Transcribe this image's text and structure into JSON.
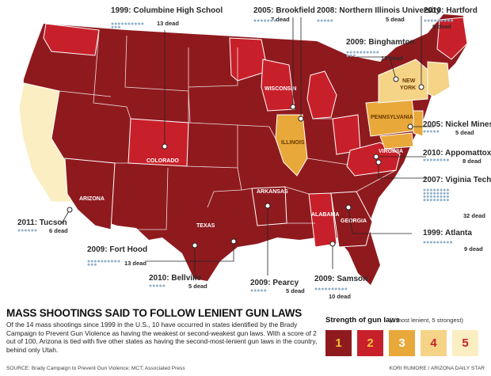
{
  "map": {
    "states": {
      "colorado": "COLORADO",
      "arizona": "ARIZONA",
      "texas": "TEXAS",
      "arkansas": "ARKANSAS",
      "wisconsin": "WISCONSIN",
      "illinois": "ILLINOIS",
      "alabama": "ALABAMA",
      "georgia": "GEORGIA",
      "virginia": "VIRGINIA",
      "pennsylvania": "PENNSYLVANIA",
      "newyork_1": "NEW",
      "newyork_2": "YORK"
    },
    "events": [
      {
        "id": "columbine",
        "title": "1999: Columbine High School",
        "deaths": "13 dead"
      },
      {
        "id": "brookfield",
        "title": "2005: Brookfield",
        "deaths": "7 dead"
      },
      {
        "id": "niu",
        "title": "2008: Northern Illinois University",
        "deaths": "5 dead"
      },
      {
        "id": "hartford",
        "title": "2010: Hartford",
        "deaths": "9 dead"
      },
      {
        "id": "binghamton",
        "title": "2009: Binghamton",
        "deaths": "13 dead"
      },
      {
        "id": "nickelmines",
        "title": "2005: Nickel Mines",
        "deaths": "5 dead"
      },
      {
        "id": "appomattox",
        "title": "2010: Appomattox",
        "deaths": "8 dead"
      },
      {
        "id": "vatech",
        "title": "2007: Viginia Tech",
        "deaths": "32 dead"
      },
      {
        "id": "atlanta",
        "title": "1999: Atlanta",
        "deaths": "9 dead"
      },
      {
        "id": "tucson",
        "title": "2011: Tucson",
        "deaths": "6 dead"
      },
      {
        "id": "forthood",
        "title": "2009: Fort Hood",
        "deaths": "13 dead"
      },
      {
        "id": "bellville",
        "title": "2010: Bellville",
        "deaths": "5 dead"
      },
      {
        "id": "pearcy",
        "title": "2009: Pearcy",
        "deaths": "5 dead"
      },
      {
        "id": "samson",
        "title": "2009: Samson",
        "deaths": "10 dead"
      }
    ]
  },
  "headline": "MASS SHOOTINGS SAID TO FOLLOW LENIENT GUN LAWS",
  "blurb": "Of the 14 mass shootings since 1999 in the U.S., 10 have occurred in states identified by the Brady Campaign to Prevent Gun Violence as having the weakest or second-weakest gun laws. With a score of 2 out of 100, Arizona is tied with five other states as having the second-most-lenient gun laws in the country, behind only Utah.",
  "source": "SOURCE: Brady Campaign to Prevent Gun Violence; MCT; Associated Press",
  "credit": "KORI RUMORE / ARIZONA DAILY STAR",
  "legend": {
    "title": "Strength of gun laws",
    "subtitle": "(1 most lenient, 5 strongest)",
    "items": [
      {
        "label": "1",
        "fill": "#8f1a1e",
        "text": "#f2c23a"
      },
      {
        "label": "2",
        "fill": "#c8202a",
        "text": "#f2c23a"
      },
      {
        "label": "3",
        "fill": "#e8a83a",
        "text": "#ffffff"
      },
      {
        "label": "4",
        "fill": "#f5d488",
        "text": "#c8202a"
      },
      {
        "label": "5",
        "fill": "#fbeec2",
        "text": "#c8202a"
      }
    ]
  },
  "colors": {
    "level1": "#8f1a1e",
    "level2": "#c8202a",
    "level3": "#e8a83a",
    "level4": "#f5d488",
    "level5": "#fbeec2",
    "border": "#ffffff"
  }
}
